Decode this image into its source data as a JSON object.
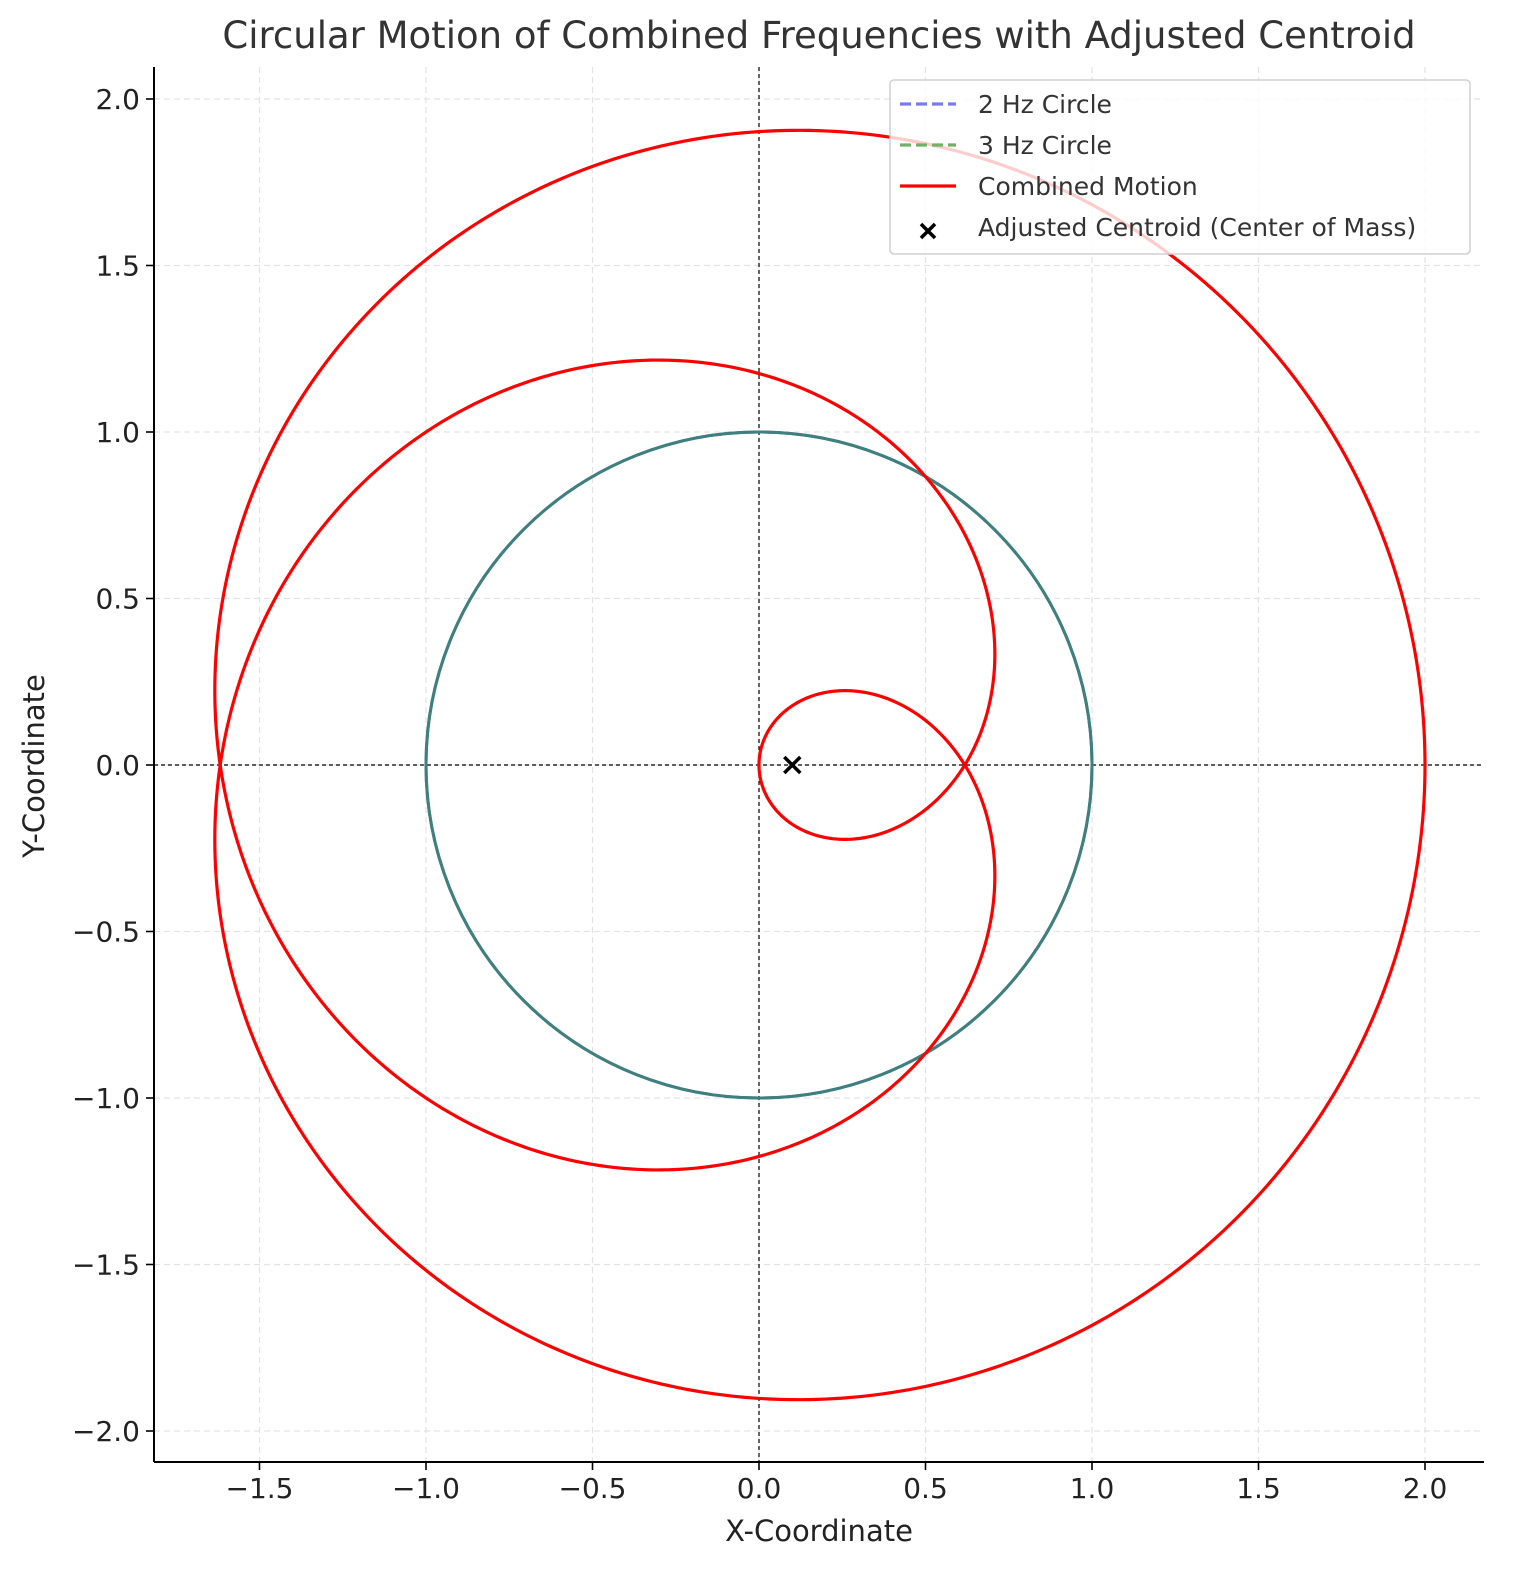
{
  "chart_data": {
    "type": "line",
    "title": "Circular Motion of Combined Frequencies with Adjusted Centroid",
    "xlabel": "X-Coordinate",
    "ylabel": "Y-Coordinate",
    "xlim": [
      -1.82,
      2.18
    ],
    "ylim": [
      -2.1,
      2.1
    ],
    "xticks": [
      -1.5,
      -1.0,
      -0.5,
      0.0,
      0.5,
      1.0,
      1.5,
      2.0
    ],
    "xtick_labels": [
      "−1.5",
      "−1.0",
      "−0.5",
      "0.0",
      "0.5",
      "1.0",
      "1.5",
      "2.0"
    ],
    "yticks": [
      -2.0,
      -1.5,
      -1.0,
      -0.5,
      0.0,
      0.5,
      1.0,
      1.5,
      2.0
    ],
    "ytick_labels": [
      "−2.0",
      "−1.5",
      "−1.0",
      "−0.5",
      "0.0",
      "0.5",
      "1.0",
      "1.5",
      "2.0"
    ],
    "grid": true,
    "legend_position": "top-right",
    "reference_lines": {
      "x": 0,
      "y": 0,
      "style": "dashed",
      "color": "#000000"
    },
    "series": [
      {
        "name": "2 Hz Circle",
        "kind": "circle",
        "center": [
          0,
          0
        ],
        "radius": 1,
        "color": "#7a7af5",
        "linestyle": "dashed"
      },
      {
        "name": "3 Hz Circle",
        "kind": "circle",
        "center": [
          0,
          0
        ],
        "radius": 1,
        "color": "#72b06a",
        "linestyle": "dashed"
      },
      {
        "name": "Combined Motion",
        "kind": "parametric",
        "formula": "x = cos(2t) + cos(3t), y = sin(2t) + sin(3t)",
        "t_range": [
          0,
          6.2832
        ],
        "color": "#ff0000",
        "linestyle": "solid"
      },
      {
        "name": "Adjusted Centroid (Center of Mass)",
        "kind": "marker",
        "marker": "x",
        "x": 0.1,
        "y": 0.0,
        "color": "#000000"
      }
    ],
    "overlap_color": "#3f7f7f"
  }
}
